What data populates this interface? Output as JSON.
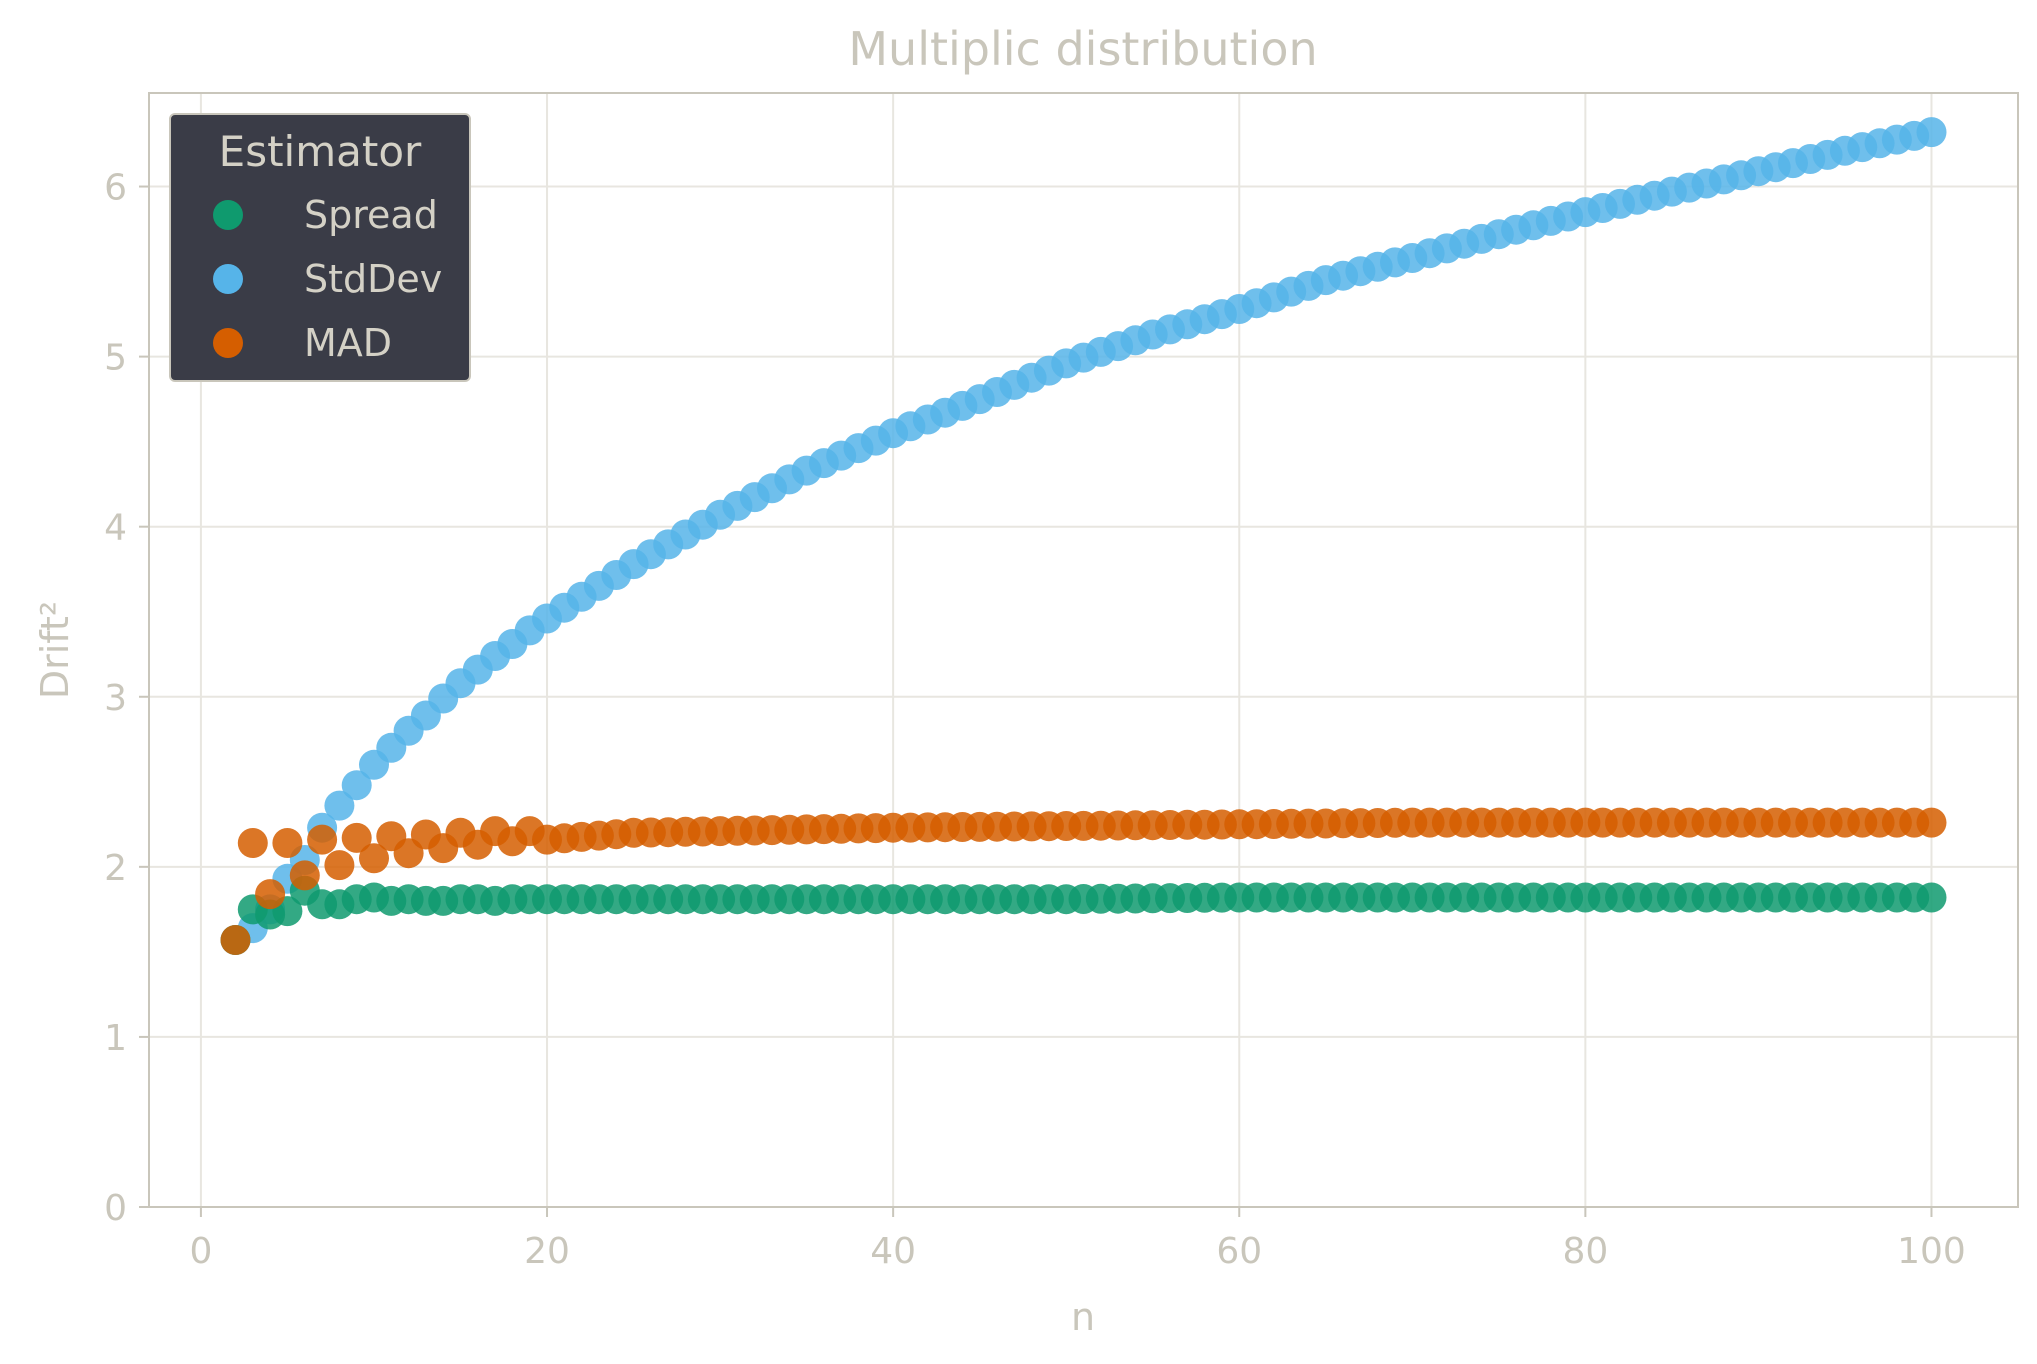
{
  "chart_data": {
    "type": "scatter",
    "title": "Multiplic distribution",
    "xlabel": "n",
    "ylabel": "Drift²",
    "xlim": [
      -3,
      105
    ],
    "ylim": [
      0,
      6.55
    ],
    "xticks": [
      0,
      20,
      40,
      60,
      80,
      100
    ],
    "yticks": [
      0,
      1,
      2,
      3,
      4,
      5,
      6
    ],
    "x_tick_labels": [
      "0",
      "20",
      "40",
      "60",
      "80",
      "100"
    ],
    "y_tick_labels": [
      "0",
      "1",
      "2",
      "3",
      "4",
      "5",
      "6"
    ],
    "grid": true,
    "legend": {
      "title": "Estimator",
      "placement": "top-left"
    },
    "x_range": [
      2,
      100
    ],
    "series": [
      {
        "name": "Spread",
        "color": "#0f9a6e",
        "points": [
          [
            2,
            1.57
          ],
          [
            3,
            1.75
          ],
          [
            4,
            1.72
          ],
          [
            5,
            1.74
          ],
          [
            6,
            1.86
          ],
          [
            7,
            1.78
          ],
          [
            8,
            1.78
          ],
          [
            9,
            1.81
          ],
          [
            10,
            1.82
          ],
          [
            11,
            1.8
          ],
          [
            12,
            1.81
          ],
          [
            13,
            1.8
          ],
          [
            14,
            1.8
          ],
          [
            15,
            1.81
          ],
          [
            16,
            1.81
          ],
          [
            17,
            1.8
          ],
          [
            18,
            1.81
          ],
          [
            19,
            1.81
          ],
          [
            20,
            1.81
          ],
          [
            25,
            1.81
          ],
          [
            30,
            1.81
          ],
          [
            35,
            1.81
          ],
          [
            40,
            1.81
          ],
          [
            50,
            1.81
          ],
          [
            60,
            1.82
          ],
          [
            70,
            1.82
          ],
          [
            80,
            1.82
          ],
          [
            90,
            1.82
          ],
          [
            100,
            1.82
          ]
        ]
      },
      {
        "name": "StdDev",
        "color": "#56b4e9",
        "points": [
          [
            2,
            1.57
          ],
          [
            3,
            1.64
          ],
          [
            4,
            1.75
          ],
          [
            5,
            1.93
          ],
          [
            6,
            2.04
          ],
          [
            7,
            2.23
          ],
          [
            8,
            2.36
          ],
          [
            9,
            2.48
          ],
          [
            10,
            2.6
          ],
          [
            11,
            2.7
          ],
          [
            12,
            2.8
          ],
          [
            13,
            2.89
          ],
          [
            14,
            2.99
          ],
          [
            15,
            3.08
          ],
          [
            16,
            3.16
          ],
          [
            17,
            3.24
          ],
          [
            18,
            3.31
          ],
          [
            19,
            3.39
          ],
          [
            20,
            3.46
          ],
          [
            25,
            3.78
          ],
          [
            30,
            4.07
          ],
          [
            35,
            4.33
          ],
          [
            40,
            4.55
          ],
          [
            45,
            4.75
          ],
          [
            50,
            4.96
          ],
          [
            55,
            5.13
          ],
          [
            60,
            5.28
          ],
          [
            65,
            5.45
          ],
          [
            70,
            5.58
          ],
          [
            75,
            5.72
          ],
          [
            80,
            5.85
          ],
          [
            85,
            5.97
          ],
          [
            90,
            6.09
          ],
          [
            95,
            6.21
          ],
          [
            100,
            6.32
          ]
        ]
      },
      {
        "name": "MAD",
        "color": "#d55e00",
        "points": [
          [
            2,
            1.57
          ],
          [
            3,
            2.14
          ],
          [
            4,
            1.84
          ],
          [
            5,
            2.14
          ],
          [
            6,
            1.95
          ],
          [
            7,
            2.16
          ],
          [
            8,
            2.01
          ],
          [
            9,
            2.17
          ],
          [
            10,
            2.05
          ],
          [
            11,
            2.18
          ],
          [
            12,
            2.08
          ],
          [
            13,
            2.19
          ],
          [
            14,
            2.11
          ],
          [
            15,
            2.2
          ],
          [
            16,
            2.13
          ],
          [
            17,
            2.21
          ],
          [
            18,
            2.15
          ],
          [
            19,
            2.21
          ],
          [
            20,
            2.16
          ],
          [
            25,
            2.2
          ],
          [
            30,
            2.21
          ],
          [
            35,
            2.22
          ],
          [
            40,
            2.23
          ],
          [
            50,
            2.24
          ],
          [
            60,
            2.25
          ],
          [
            70,
            2.26
          ],
          [
            80,
            2.26
          ],
          [
            90,
            2.26
          ],
          [
            100,
            2.26
          ]
        ]
      }
    ]
  }
}
